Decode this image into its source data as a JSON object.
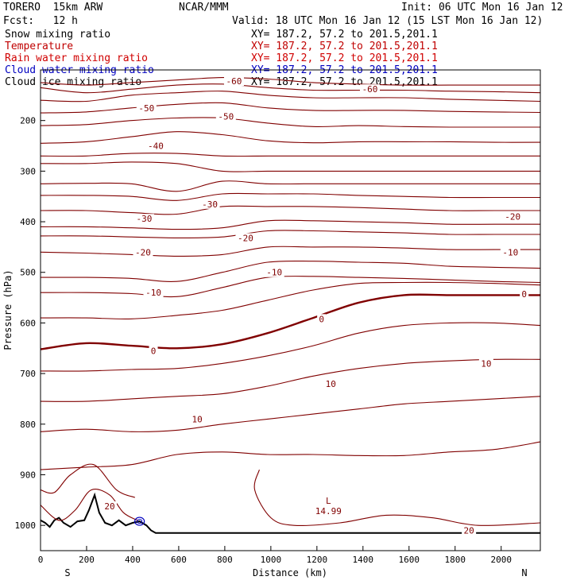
{
  "header": {
    "model": "TORERO  15km ARW",
    "org": "NCAR/MMM",
    "init": "Init: 06 UTC Mon 16 Jan 12",
    "fcst": "Fcst:   12 h",
    "valid": "Valid: 18 UTC Mon 16 Jan 12 (15 LST Mon 16 Jan 12)"
  },
  "legend": [
    {
      "name": "Snow mixing ratio",
      "xy": "XY= 187.2, 57.2 to 201.5,201.1",
      "color": "#000000"
    },
    {
      "name": "Temperature",
      "xy": "XY= 187.2, 57.2 to 201.5,201.1",
      "color": "#c00000"
    },
    {
      "name": "Rain water mixing ratio",
      "xy": "XY= 187.2, 57.2 to 201.5,201.1",
      "color": "#d00000"
    },
    {
      "name": "Cloud water mixing ratio",
      "xy": "XY= 187.2, 57.2 to 201.5,201.1",
      "color": "#0000c0"
    },
    {
      "name": "Cloud ice mixing ratio",
      "xy": "XY= 187.2, 57.2 to 201.5,201.1",
      "color": "#000000"
    }
  ],
  "chart_data": {
    "type": "contour-cross-section",
    "xlabel": "Distance (km)",
    "ylabel": "Pressure (hPa)",
    "xlim": [
      0,
      2170
    ],
    "ylim": [
      1050,
      100
    ],
    "x_ticks": [
      0,
      200,
      400,
      600,
      800,
      1000,
      1200,
      1400,
      1600,
      1800,
      2000
    ],
    "y_ticks": [
      200,
      300,
      400,
      500,
      600,
      700,
      800,
      900,
      1000
    ],
    "x_endpoints": {
      "left": "S",
      "right": "N"
    },
    "contour_color": "#800000",
    "terrain_color": "#000000",
    "isotherms": [
      {
        "level": -60,
        "p": [
          125,
          130,
          125,
          120,
          115,
          118,
          125,
          128,
          130,
          130,
          130,
          130
        ]
      },
      {
        "level": -60,
        "p": [
          135,
          145,
          138,
          130,
          128,
          135,
          140,
          140,
          140,
          142,
          143,
          145
        ]
      },
      {
        "level": -60,
        "p": [
          160,
          162,
          150,
          145,
          142,
          150,
          155,
          155,
          155,
          158,
          160,
          162
        ]
      },
      {
        "level": -50,
        "p": [
          185,
          183,
          175,
          168,
          165,
          175,
          180,
          180,
          180,
          182,
          183,
          184
        ]
      },
      {
        "level": -50,
        "p": [
          210,
          208,
          200,
          195,
          195,
          205,
          212,
          210,
          212,
          213,
          213,
          213
        ]
      },
      {
        "level": -50,
        "p": [
          245,
          242,
          232,
          222,
          228,
          240,
          244,
          242,
          242,
          242,
          243,
          243
        ]
      },
      {
        "level": -40,
        "p": [
          270,
          270,
          265,
          265,
          270,
          270,
          270,
          270,
          270,
          270,
          270,
          270
        ]
      },
      {
        "level": -40,
        "p": [
          285,
          285,
          282,
          285,
          300,
          300,
          300,
          300,
          300,
          300,
          300,
          300
        ]
      },
      {
        "level": -40,
        "p": [
          325,
          324,
          325,
          340,
          320,
          325,
          325,
          325,
          325,
          325,
          325,
          325
        ]
      },
      {
        "level": -30,
        "p": [
          348,
          348,
          350,
          358,
          345,
          345,
          345,
          348,
          350,
          352,
          352,
          352
        ]
      },
      {
        "level": -30,
        "p": [
          378,
          378,
          382,
          385,
          370,
          370,
          370,
          372,
          375,
          378,
          378,
          378
        ]
      },
      {
        "level": -30,
        "p": [
          410,
          410,
          412,
          415,
          412,
          398,
          398,
          400,
          402,
          405,
          405,
          405
        ]
      },
      {
        "level": -20,
        "p": [
          428,
          428,
          430,
          432,
          430,
          418,
          418,
          420,
          422,
          425,
          425,
          425
        ]
      },
      {
        "level": -20,
        "p": [
          460,
          462,
          465,
          468,
          465,
          450,
          450,
          450,
          452,
          455,
          455,
          455
        ]
      },
      {
        "level": -20,
        "p": [
          510,
          510,
          512,
          518,
          500,
          480,
          478,
          480,
          482,
          488,
          490,
          492
        ]
      },
      {
        "level": -10,
        "p": [
          540,
          540,
          542,
          548,
          530,
          510,
          508,
          510,
          512,
          515,
          518,
          520
        ]
      },
      {
        "level": -10,
        "p": [
          590,
          590,
          592,
          585,
          575,
          555,
          535,
          522,
          520,
          520,
          522,
          525
        ]
      },
      {
        "level": 0,
        "p": [
          652,
          640,
          645,
          650,
          642,
          620,
          590,
          560,
          545,
          545,
          545,
          545
        ]
      },
      {
        "level": 0,
        "p": [
          695,
          695,
          692,
          690,
          680,
          665,
          645,
          620,
          605,
          600,
          600,
          605
        ]
      },
      {
        "level": 10,
        "p": [
          755,
          755,
          750,
          745,
          740,
          725,
          705,
          690,
          680,
          675,
          672,
          672
        ]
      },
      {
        "level": 10,
        "p": [
          815,
          810,
          815,
          812,
          800,
          790,
          780,
          770,
          760,
          755,
          750,
          745
        ]
      },
      {
        "level": 10,
        "p": [
          890,
          885,
          880,
          860,
          855,
          860,
          860,
          862,
          862,
          855,
          850,
          835
        ]
      }
    ],
    "contour_labels": [
      {
        "text": "-60",
        "x": 840,
        "p": 122
      },
      {
        "text": "-60",
        "x": 1430,
        "p": 138
      },
      {
        "text": "-50",
        "x": 460,
        "p": 175
      },
      {
        "text": "-50",
        "x": 805,
        "p": 192
      },
      {
        "text": "-40",
        "x": 500,
        "p": 250
      },
      {
        "text": "-30",
        "x": 450,
        "p": 394
      },
      {
        "text": "-30",
        "x": 735,
        "p": 365
      },
      {
        "text": "-20",
        "x": 445,
        "p": 460
      },
      {
        "text": "-20",
        "x": 890,
        "p": 432
      },
      {
        "text": "-20",
        "x": 2050,
        "p": 390
      },
      {
        "text": "-10",
        "x": 490,
        "p": 540
      },
      {
        "text": "-10",
        "x": 1015,
        "p": 500
      },
      {
        "text": "-10",
        "x": 2040,
        "p": 460
      },
      {
        "text": "0",
        "x": 490,
        "p": 655
      },
      {
        "text": "0",
        "x": 1220,
        "p": 592
      },
      {
        "text": "0",
        "x": 2100,
        "p": 543
      },
      {
        "text": "10",
        "x": 680,
        "p": 790
      },
      {
        "text": "10",
        "x": 1260,
        "p": 720
      },
      {
        "text": "10",
        "x": 1935,
        "p": 680
      },
      {
        "text": "20",
        "x": 300,
        "p": 962
      },
      {
        "text": "20",
        "x": 1860,
        "p": 1010
      }
    ],
    "low_marker": {
      "label": "L",
      "value": "14.99",
      "x": 1250,
      "p": 965
    },
    "terrain": [
      [
        0,
        990
      ],
      [
        20,
        995
      ],
      [
        40,
        1003
      ],
      [
        60,
        990
      ],
      [
        80,
        985
      ],
      [
        100,
        995
      ],
      [
        130,
        1003
      ],
      [
        160,
        992
      ],
      [
        190,
        990
      ],
      [
        210,
        970
      ],
      [
        235,
        940
      ],
      [
        255,
        975
      ],
      [
        280,
        995
      ],
      [
        310,
        1000
      ],
      [
        340,
        990
      ],
      [
        370,
        1000
      ],
      [
        400,
        995
      ],
      [
        430,
        992
      ],
      [
        460,
        1000
      ],
      [
        480,
        1010
      ],
      [
        500,
        1015
      ],
      [
        2170,
        1015
      ]
    ]
  }
}
